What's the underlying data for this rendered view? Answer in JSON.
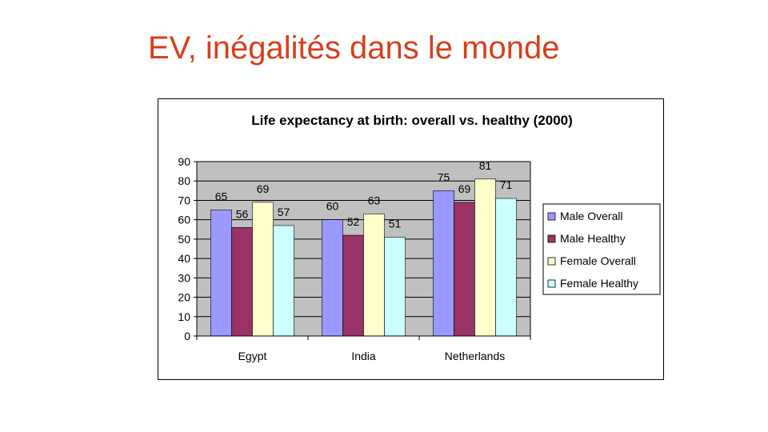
{
  "slide": {
    "title": "EV, inégalités dans le monde"
  },
  "chart_data": {
    "type": "bar",
    "title": "Life expectancy at birth: overall vs. healthy (2000)",
    "categories": [
      "Egypt",
      "India",
      "Netherlands"
    ],
    "series": [
      {
        "name": "Male Overall",
        "values": [
          65,
          60,
          75
        ],
        "color": "#9999ff"
      },
      {
        "name": "Male Healthy",
        "values": [
          56,
          52,
          69
        ],
        "color": "#993366"
      },
      {
        "name": "Female Overall",
        "values": [
          69,
          63,
          81
        ],
        "color": "#ffffcc"
      },
      {
        "name": "Female Healthy",
        "values": [
          57,
          51,
          71
        ],
        "color": "#ccffff"
      }
    ],
    "ylim": [
      0,
      90
    ],
    "yticks": [
      "0",
      "10",
      "20",
      "30",
      "40",
      "50",
      "60",
      "70",
      "80",
      "90"
    ],
    "plot_background": "#c0c0c0",
    "grid": true,
    "legend": "right",
    "xlabel": "",
    "ylabel": ""
  }
}
